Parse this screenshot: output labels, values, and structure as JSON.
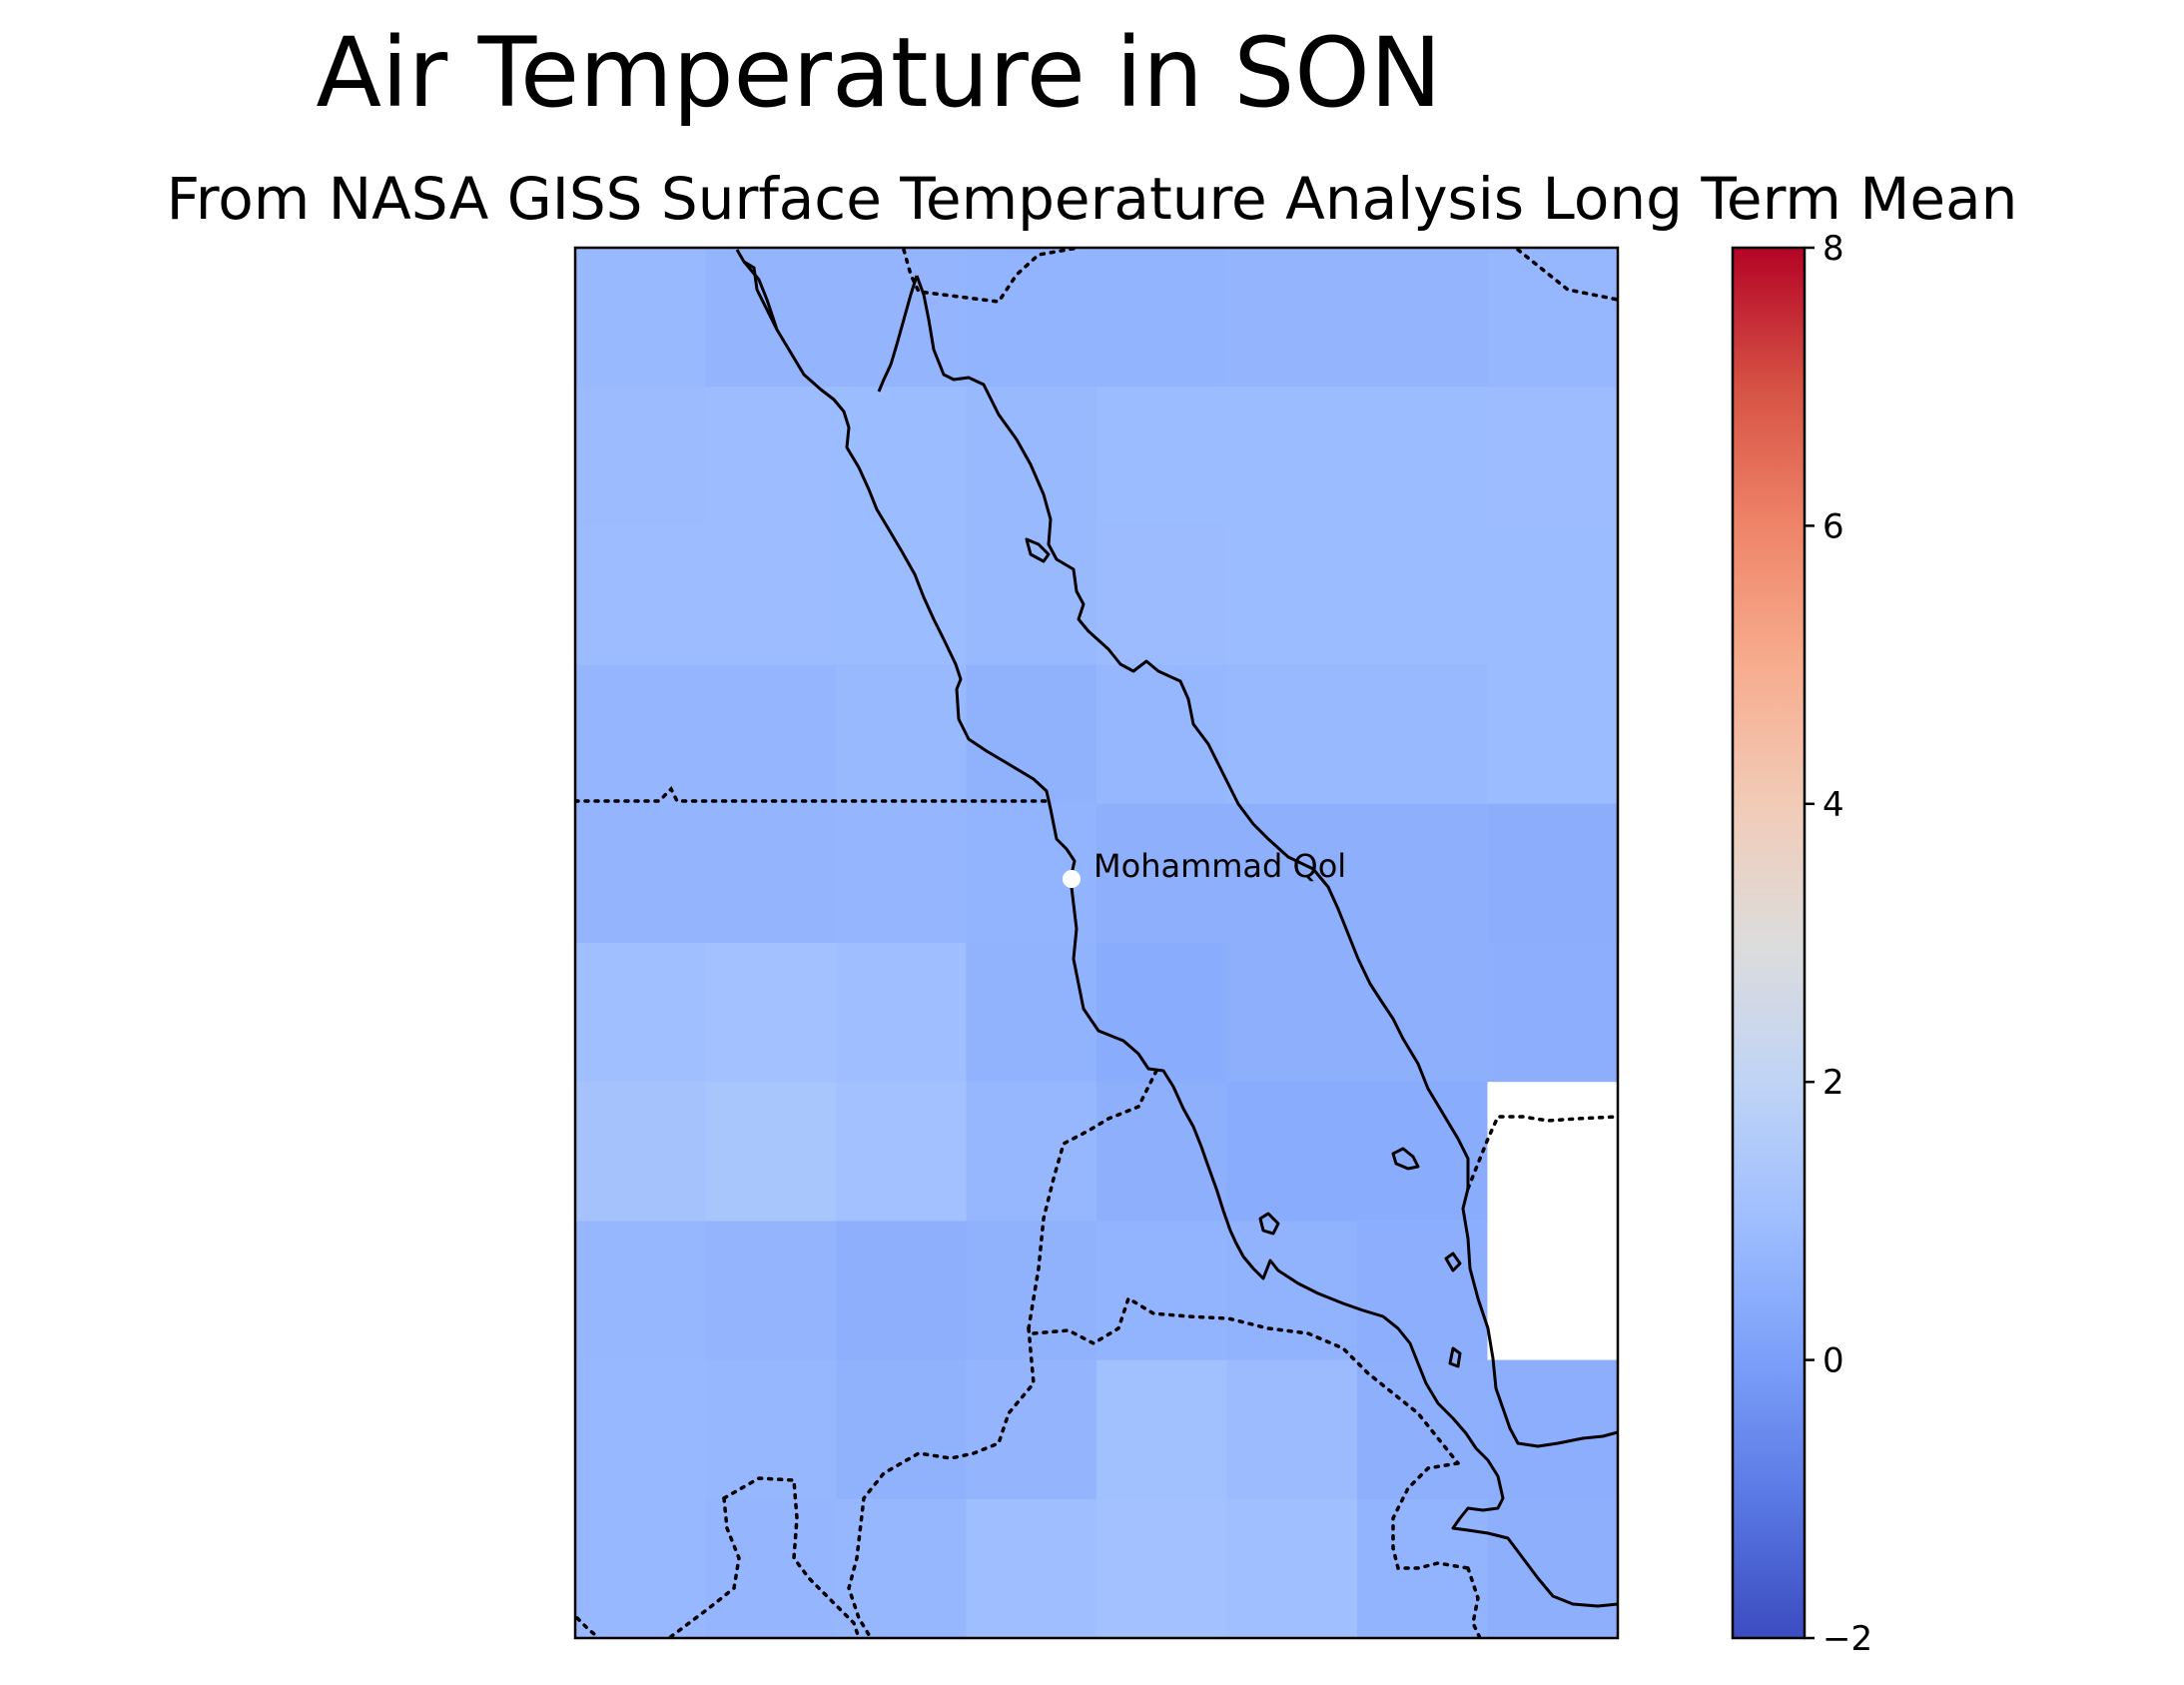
{
  "figure": {
    "title": "Air Temperature in SON",
    "subtitle": "From NASA GISS Surface Temperature Analysis Long Term Mean"
  },
  "map": {
    "region": "Red Sea",
    "marker": {
      "label": "Mohammad Qol",
      "color": "#ffffff"
    },
    "missing_cell_color": "#ffffff",
    "features": [
      "coastline",
      "country-borders"
    ]
  },
  "chart_data": {
    "type": "heatmap",
    "title": "Air Temperature in SON",
    "subtitle": "From NASA GISS Surface Temperature Analysis Long Term Mean",
    "colormap": "coolwarm",
    "colorbar": {
      "vmin": -2,
      "vmax": 8,
      "ticks": [
        -2,
        0,
        2,
        4,
        6,
        8
      ],
      "tick_labels": [
        "−2",
        "0",
        "2",
        "4",
        "6",
        "8"
      ],
      "stops": [
        {
          "value": -2,
          "color": "#3b4cc0"
        },
        {
          "value": -1,
          "color": "#5a78e4"
        },
        {
          "value": 0,
          "color": "#7b9ff9"
        },
        {
          "value": 1,
          "color": "#9ebeff"
        },
        {
          "value": 2,
          "color": "#c0d4f5"
        },
        {
          "value": 3,
          "color": "#dddcdc"
        },
        {
          "value": 4,
          "color": "#f2cbb7"
        },
        {
          "value": 5,
          "color": "#f7ac8e"
        },
        {
          "value": 6,
          "color": "#ee8468"
        },
        {
          "value": 7,
          "color": "#d65244"
        },
        {
          "value": 8,
          "color": "#b40426"
        }
      ]
    },
    "grid": [
      [
        0.85,
        0.7,
        0.72,
        0.65,
        0.65,
        0.72,
        0.72,
        0.78
      ],
      [
        0.9,
        0.95,
        0.92,
        0.85,
        0.92,
        0.92,
        0.92,
        0.95
      ],
      [
        0.95,
        0.95,
        0.92,
        0.85,
        0.9,
        0.92,
        0.92,
        0.92
      ],
      [
        0.75,
        0.75,
        0.85,
        0.6,
        0.78,
        0.85,
        0.85,
        0.92
      ],
      [
        0.72,
        0.72,
        0.75,
        0.65,
        0.55,
        0.52,
        0.52,
        0.45
      ],
      [
        1.05,
        1.15,
        1.0,
        0.62,
        0.42,
        0.5,
        0.52,
        0.48
      ],
      [
        1.2,
        1.3,
        1.15,
        0.78,
        0.5,
        0.42,
        0.42,
        null
      ],
      [
        0.78,
        0.72,
        0.5,
        0.6,
        0.65,
        0.62,
        0.48,
        null
      ],
      [
        0.8,
        0.78,
        0.6,
        0.7,
        1.1,
        0.9,
        0.5,
        0.48
      ],
      [
        0.8,
        0.75,
        0.78,
        1.0,
        1.15,
        1.05,
        0.65,
        0.55
      ]
    ]
  }
}
